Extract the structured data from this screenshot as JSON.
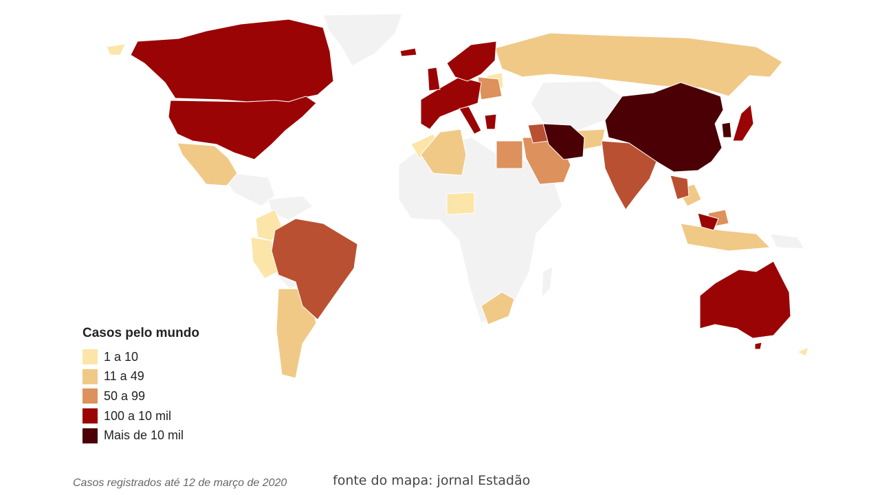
{
  "legend": {
    "title": "Casos pelo mundo",
    "items": [
      {
        "label": "1 a 10",
        "color": "#fce5a8"
      },
      {
        "label": "11 a 49",
        "color": "#f0c987"
      },
      {
        "label": "50 a 99",
        "color": "#dd915c"
      },
      {
        "label": "100 a 10 mil",
        "color": "#9b0404"
      },
      {
        "label": "Mais de 10 mil",
        "color": "#4a0004"
      }
    ]
  },
  "no_data_color": "#f2f2f2",
  "footnote": "Casos registrados até 12 de março de 2020",
  "source": "fonte do mapa: jornal Estadão"
}
